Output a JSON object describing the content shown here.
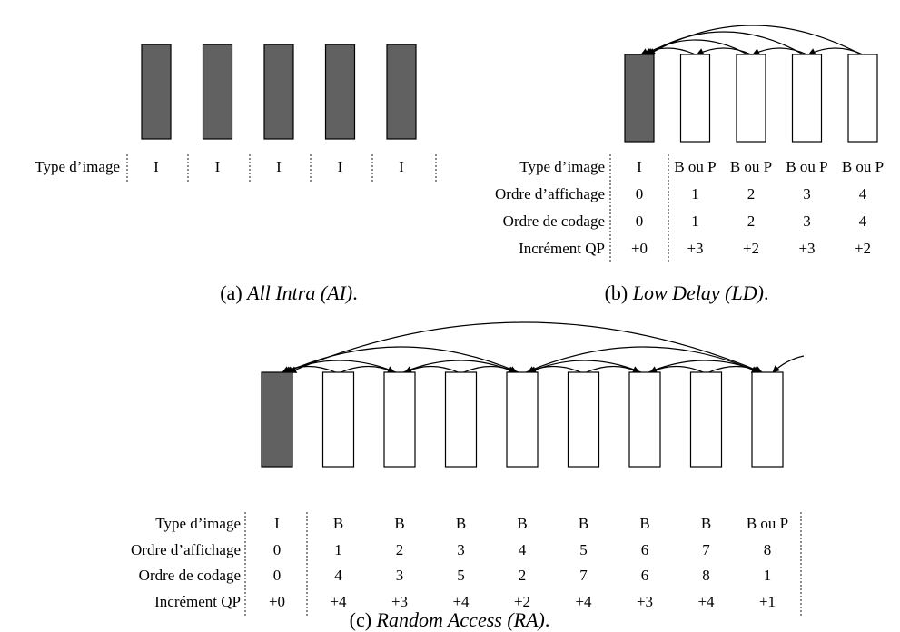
{
  "panels": {
    "ai": {
      "caption_prefix": "(a) ",
      "caption_italic": "All Intra (AI)",
      "caption_suffix": ".",
      "rows": [
        {
          "label": "Type d’image",
          "cells": [
            "I",
            "I",
            "I",
            "I",
            "I"
          ]
        }
      ],
      "frames": [
        "intra",
        "intra",
        "intra",
        "intra",
        "intra"
      ]
    },
    "ld": {
      "caption_prefix": "(b) ",
      "caption_italic": "Low Delay (LD)",
      "caption_suffix": ".",
      "rows": [
        {
          "label": "Type d’image",
          "cells": [
            "I",
            "B ou P",
            "B ou P",
            "B ou P",
            "B ou P"
          ]
        },
        {
          "label": "Ordre d’affichage",
          "cells": [
            "0",
            "1",
            "2",
            "3",
            "4"
          ]
        },
        {
          "label": "Ordre de codage",
          "cells": [
            "0",
            "1",
            "2",
            "3",
            "4"
          ]
        },
        {
          "label": "Incrément QP",
          "cells": [
            "+0",
            "+3",
            "+2",
            "+3",
            "+2"
          ]
        }
      ],
      "frames": [
        "intra",
        "inter",
        "inter",
        "inter",
        "inter"
      ]
    },
    "ra": {
      "caption_prefix": "(c) ",
      "caption_italic": "Random Access (RA)",
      "caption_suffix": ".",
      "rows": [
        {
          "label": "Type d’image",
          "cells": [
            "I",
            "B",
            "B",
            "B",
            "B",
            "B",
            "B",
            "B",
            "B ou P"
          ]
        },
        {
          "label": "Ordre d’affichage",
          "cells": [
            "0",
            "1",
            "2",
            "3",
            "4",
            "5",
            "6",
            "7",
            "8"
          ]
        },
        {
          "label": "Ordre de codage",
          "cells": [
            "0",
            "4",
            "3",
            "5",
            "2",
            "7",
            "6",
            "8",
            "1"
          ]
        },
        {
          "label": "Incrément QP",
          "cells": [
            "+0",
            "+4",
            "+3",
            "+4",
            "+2",
            "+4",
            "+3",
            "+4",
            "+1"
          ]
        }
      ],
      "frames": [
        "intra",
        "inter",
        "inter",
        "inter",
        "inter",
        "inter",
        "inter",
        "inter",
        "inter"
      ]
    }
  },
  "colors": {
    "intra_frame": "#616161",
    "inter_frame": "#ffffff",
    "stroke": "#000000"
  }
}
